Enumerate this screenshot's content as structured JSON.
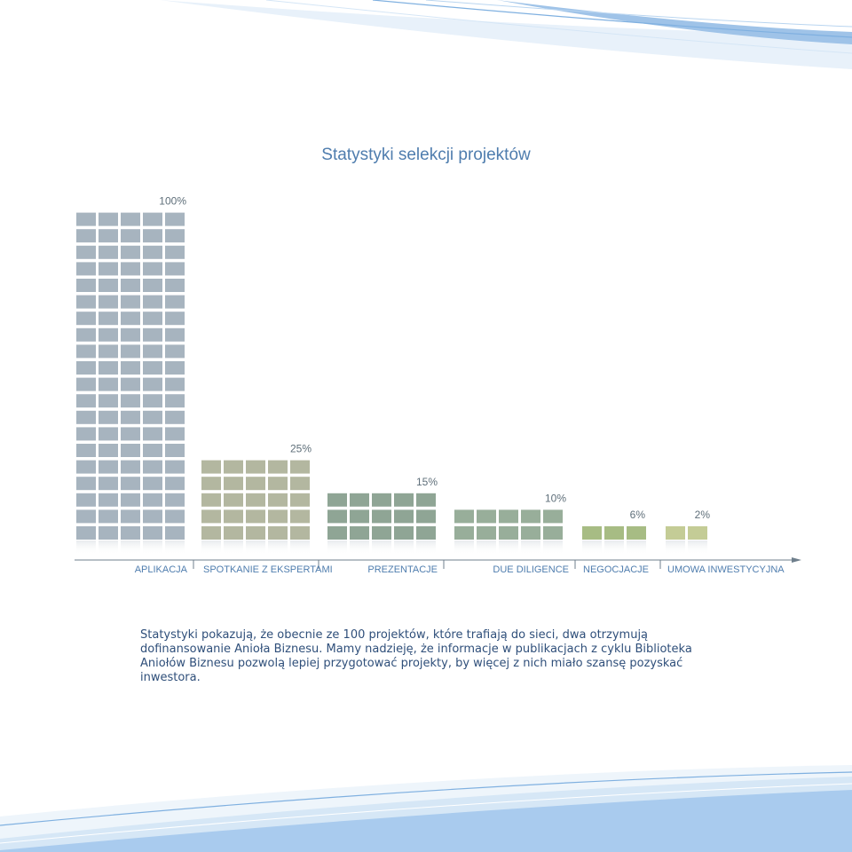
{
  "chart_data": {
    "type": "bar",
    "title": "Statystyki selekcji projektów",
    "categories": [
      "APLIKACJA",
      "SPOTKANIE Z EKSPERTAMI",
      "PREZENTACJE",
      "DUE DILIGENCE",
      "NEGOCJACJE",
      "UMOWA INWESTYCYJNA"
    ],
    "values": [
      100,
      25,
      15,
      10,
      6,
      2
    ],
    "value_labels": [
      "100%",
      "25%",
      "15%",
      "10%",
      "6%",
      "2%"
    ],
    "unit": "%",
    "grid": false,
    "colors": [
      "#a7b4bf",
      "#b3b7a0",
      "#8fa595",
      "#98ae9a",
      "#a7bc84",
      "#c4cc96"
    ]
  },
  "description": "Statystyki pokazują, że obecnie ze 100 projektów, które trafiają do sieci, dwa otrzymują dofinansowanie Anioła Biznesu. Mamy nadzieję, że informacje w publikacjach z cyklu Biblioteka Aniołów Biznesu pozwolą lepiej przygotować projekty, by więcej z nich miało szansę pozyskać inwestora."
}
